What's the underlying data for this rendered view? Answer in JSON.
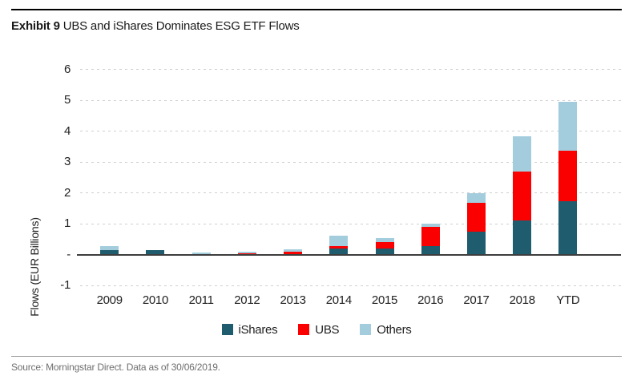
{
  "header": {
    "exhibit_label": "Exhibit 9",
    "title": "UBS and iShares Dominates ESG ETF Flows"
  },
  "footer": {
    "source": "Source: Morningstar Direct. Data as of 30/06/2019."
  },
  "colors": {
    "ishares_teal": "#1f5c6d",
    "ubs_red": "#fb0000",
    "others_light_blue": "#a3cddd",
    "axis_line": "#3d3d3d",
    "gridline": "#cfcfcf",
    "source_text": "#6f6f6f"
  },
  "chart_data": {
    "type": "bar",
    "stacked": true,
    "title": "UBS and iShares Dominates ESG ETF Flows",
    "xlabel": "",
    "ylabel": "Flows (EUR Billions)",
    "ylim": [
      -1,
      6
    ],
    "grid": "horizontal-dashed",
    "legend_position": "bottom",
    "units": "EUR Billions",
    "categories": [
      "2009",
      "2010",
      "2011",
      "2012",
      "2013",
      "2014",
      "2015",
      "2016",
      "2017",
      "2018",
      "YTD"
    ],
    "series": [
      {
        "name": "iShares",
        "color": "#1f5c6d",
        "values": [
          0.15,
          0.15,
          0.0,
          0.0,
          0.02,
          0.2,
          0.2,
          0.28,
          0.73,
          1.1,
          1.72
        ]
      },
      {
        "name": "UBS",
        "color": "#fb0000",
        "values": [
          0.0,
          0.0,
          0.0,
          0.05,
          0.08,
          0.08,
          0.2,
          0.62,
          0.95,
          1.6,
          1.65
        ]
      },
      {
        "name": "Others",
        "color": "#a3cddd",
        "values": [
          0.13,
          0.0,
          0.07,
          0.03,
          0.06,
          0.32,
          0.14,
          0.09,
          0.32,
          1.13,
          1.57
        ]
      }
    ],
    "totals": [
      0.28,
      0.15,
      0.07,
      0.08,
      0.16,
      0.6,
      0.54,
      0.99,
      2.0,
      3.83,
      4.94
    ],
    "y_ticks": [
      {
        "value": 6,
        "label": "6"
      },
      {
        "value": 5,
        "label": "5"
      },
      {
        "value": 4,
        "label": "4"
      },
      {
        "value": 3,
        "label": "3"
      },
      {
        "value": 2,
        "label": "2"
      },
      {
        "value": 1,
        "label": "1"
      },
      {
        "value": 0,
        "label": "-"
      },
      {
        "value": -1,
        "label": "-1"
      }
    ]
  }
}
